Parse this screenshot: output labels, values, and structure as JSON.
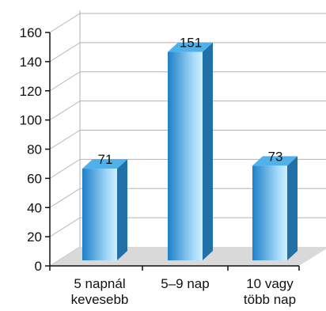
{
  "chart_data": {
    "type": "bar",
    "style": "3d-column",
    "categories": [
      [
        "5 napnál",
        "kevesebb"
      ],
      [
        "5–9 nap"
      ],
      [
        "10 vagy",
        "több nap"
      ]
    ],
    "values": [
      71,
      151,
      73
    ],
    "data_labels": [
      "71",
      "151",
      "73"
    ],
    "ylim": [
      0,
      160
    ],
    "yticks": [
      "0",
      "20",
      "40",
      "60",
      "80",
      "100",
      "120",
      "140",
      "160"
    ],
    "grid": true,
    "legend": "none",
    "title": "",
    "xlabel": "",
    "ylabel": "",
    "colors": {
      "bar_front_dark": "#1d80c8",
      "bar_front_light": "#a8dcfa",
      "bar_side": "#2170a8",
      "bar_top": "#4fb0ea",
      "floor": "#d9d9d9",
      "gridline": "#b3b3b3",
      "axis": "#111111"
    }
  }
}
